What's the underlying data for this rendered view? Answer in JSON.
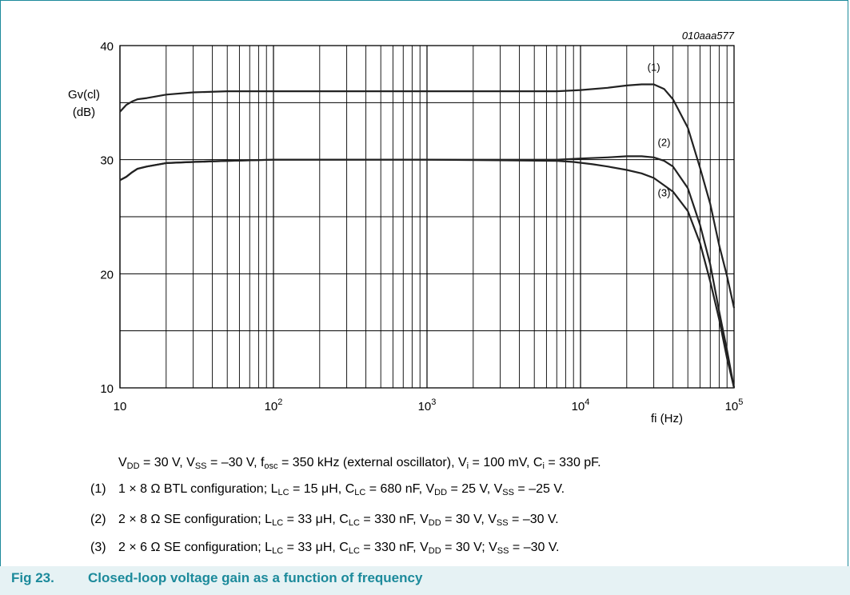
{
  "chart_data": {
    "type": "line",
    "x_scale": "log",
    "xlim": [
      10,
      100000
    ],
    "ylim": [
      10,
      40
    ],
    "xlabel": "fi (Hz)",
    "ylabel_line1": "Gv(cl)",
    "ylabel_line2": "(dB)",
    "y_ticks": [
      "10",
      "20",
      "30",
      "40"
    ],
    "x_ticks": [
      {
        "base": "10",
        "exp": ""
      },
      {
        "base": "10",
        "exp": "2"
      },
      {
        "base": "10",
        "exp": "3"
      },
      {
        "base": "10",
        "exp": "4"
      },
      {
        "base": "10",
        "exp": "5"
      }
    ],
    "code": "010aaa577",
    "grid": true,
    "series": [
      {
        "name": "(1)",
        "x": [
          10,
          11,
          12,
          13,
          15,
          20,
          30,
          50,
          100,
          1000,
          7000,
          10000,
          15000,
          20000,
          25000,
          30000,
          35000,
          40000,
          50000,
          60000,
          70000,
          80000,
          90000,
          100000
        ],
        "y": [
          34.2,
          34.8,
          35.1,
          35.3,
          35.4,
          35.7,
          35.9,
          36.0,
          36.0,
          36.0,
          36.0,
          36.1,
          36.3,
          36.5,
          36.6,
          36.6,
          36.2,
          35.3,
          32.8,
          29.3,
          26.1,
          22.5,
          19.8,
          17.0
        ]
      },
      {
        "name": "(2)",
        "x": [
          10,
          11,
          12,
          13,
          15,
          20,
          30,
          50,
          100,
          1000,
          7000,
          10000,
          15000,
          20000,
          25000,
          30000,
          35000,
          40000,
          50000,
          60000,
          70000,
          80000,
          90000,
          100000
        ],
        "y": [
          28.2,
          28.5,
          28.9,
          29.2,
          29.4,
          29.7,
          29.8,
          29.9,
          30.0,
          30.0,
          30.0,
          30.1,
          30.2,
          30.3,
          30.3,
          30.2,
          29.9,
          29.4,
          27.5,
          24.3,
          20.8,
          16.7,
          13.3,
          10.0
        ]
      },
      {
        "name": "(3)",
        "x": [
          10,
          11,
          12,
          13,
          15,
          20,
          30,
          50,
          100,
          1000,
          7000,
          9000,
          12000,
          15000,
          20000,
          25000,
          30000,
          40000,
          50000,
          60000,
          70000,
          80000,
          90000,
          100000
        ],
        "y": [
          28.2,
          28.5,
          28.9,
          29.2,
          29.4,
          29.7,
          29.8,
          29.9,
          30.0,
          30.0,
          29.9,
          29.8,
          29.6,
          29.4,
          29.1,
          28.8,
          28.4,
          27.2,
          25.5,
          22.7,
          19.3,
          16.0,
          12.6,
          10.0
        ]
      }
    ],
    "colors": {
      "line": "#222222",
      "grid": "#000000",
      "accent": "#1c8a9b"
    }
  },
  "conditions": {
    "main": {
      "vdd": "V",
      "vdd_sub": "DD",
      "vdd_rest": " = 30 V, V",
      "vss_sub": "SS",
      "vss_rest": " = –30 V, f",
      "fosc_sub": "osc",
      "fosc_rest": " = 350 kHz (external oscillator), V",
      "vi_sub": "i",
      "vi_rest": " = 100 mV, C",
      "ci_sub": "i",
      "ci_rest": " = 330 pF."
    },
    "notes": [
      {
        "num": "(1)",
        "t1": "1 × 8 Ω BTL configuration; L",
        "s1": "LC",
        "t2": " = 15 μH, C",
        "s2": "LC",
        "t3": " = 680 nF, V",
        "s3": "DD",
        "t4": " = 25 V, V",
        "s4": "SS",
        "t5": " = –25 V."
      },
      {
        "num": "(2)",
        "t1": "2 × 8 Ω SE configuration; L",
        "s1": "LC",
        "t2": " = 33 μH, C",
        "s2": "LC",
        "t3": " = 330 nF, V",
        "s3": "DD",
        "t4": " = 30 V, V",
        "s4": "SS",
        "t5": " = –30 V."
      },
      {
        "num": "(3)",
        "t1": "2 × 6 Ω SE configuration; L",
        "s1": "LC",
        "t2": " = 33 μH, C",
        "s2": "LC",
        "t3": " = 330 nF, V",
        "s3": "DD",
        "t4": " = 30 V; V",
        "s4": "SS",
        "t5": " = –30 V."
      }
    ]
  },
  "figure": {
    "number": "Fig 23.",
    "title": "Closed-loop voltage gain as a function of frequency"
  }
}
